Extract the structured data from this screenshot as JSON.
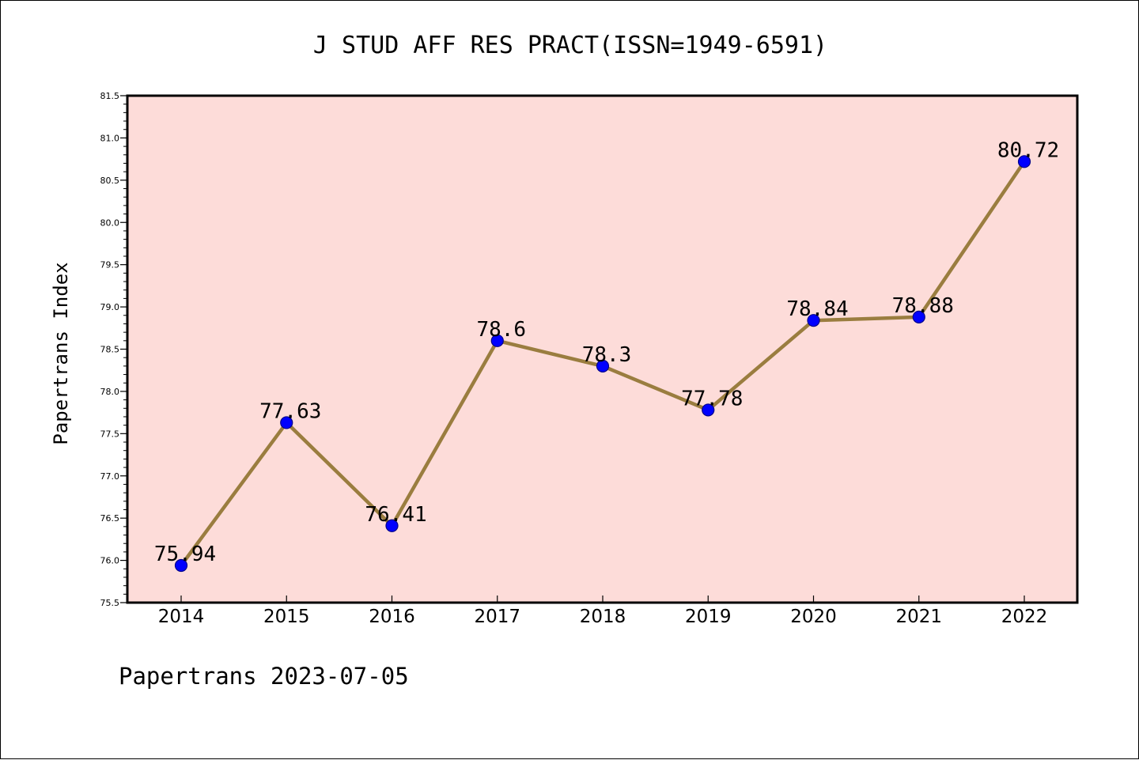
{
  "chart_data": {
    "type": "line",
    "title": "J STUD AFF RES PRACT(ISSN=1949-6591)",
    "xlabel": "",
    "ylabel": "Papertrans Index",
    "categories": [
      "2014",
      "2015",
      "2016",
      "2017",
      "2018",
      "2019",
      "2020",
      "2021",
      "2022"
    ],
    "series": [
      {
        "values": [
          75.94,
          77.63,
          76.41,
          78.6,
          78.3,
          77.78,
          78.84,
          78.88,
          80.72
        ],
        "labels": [
          "75.94",
          "77.63",
          "76.41",
          "78.6",
          "78.3",
          "77.78",
          "78.84",
          "78.88",
          "80.72"
        ]
      }
    ],
    "ylim": [
      75.5,
      81.5
    ],
    "yticks": [
      "75.5",
      "76.0",
      "76.5",
      "77.0",
      "77.5",
      "78.0",
      "78.5",
      "79.0",
      "79.5",
      "80.0",
      "80.5",
      "81.0",
      "81.5"
    ],
    "grid": false,
    "legend": "none",
    "colors": {
      "plot_background": "#fddcd9",
      "line": "#9a7d3f",
      "marker_fill": "#0000ff",
      "marker_edge": "#00008b"
    }
  },
  "footer": {
    "text": "Papertrans 2023-07-05"
  }
}
